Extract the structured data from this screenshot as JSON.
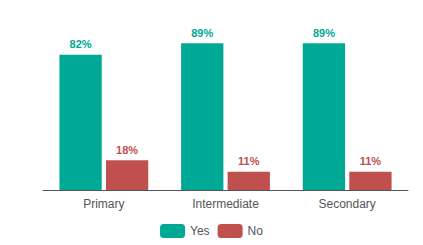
{
  "chart_data": {
    "type": "bar",
    "categories": [
      "Primary",
      "Intermediate",
      "Secondary"
    ],
    "series": [
      {
        "name": "Yes",
        "color": "#00a896",
        "values": [
          82,
          89,
          89
        ],
        "value_labels": [
          "82%",
          "89%",
          "89%"
        ]
      },
      {
        "name": "No",
        "color": "#c0504d",
        "values": [
          18,
          11,
          11
        ],
        "value_labels": [
          "18%",
          "11%",
          "11%"
        ]
      }
    ],
    "ylim": [
      0,
      100
    ],
    "data_labels": true,
    "tick_labels": "x",
    "grid": false,
    "legend": "bottom"
  }
}
